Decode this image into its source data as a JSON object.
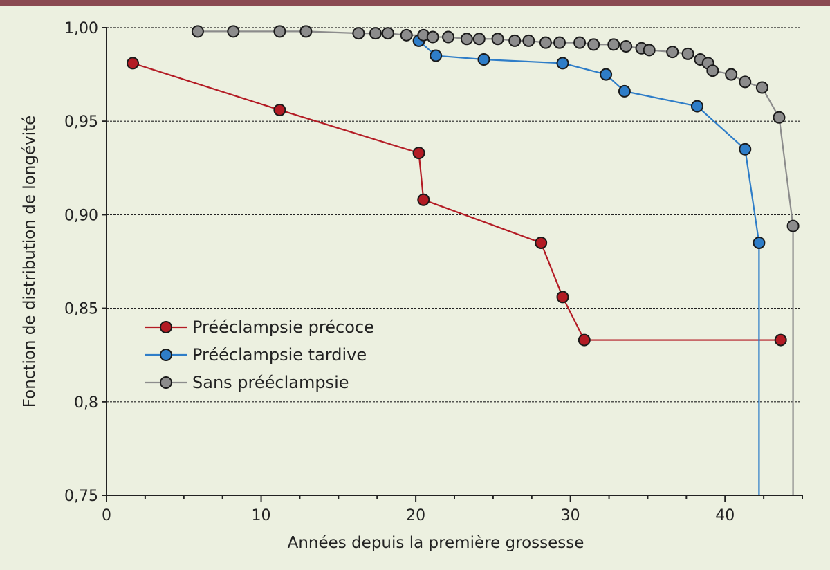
{
  "chart_data": {
    "type": "line",
    "title": "",
    "xlabel": "Années depuis la première grossesse",
    "ylabel": "Fonction de distribution de longévité",
    "xlim": [
      0,
      45
    ],
    "ylim": [
      0.75,
      1.0
    ],
    "x_ticks": [
      {
        "value": 0,
        "label": "0"
      },
      {
        "value": 10,
        "label": "10"
      },
      {
        "value": 20,
        "label": "20"
      },
      {
        "value": 30,
        "label": "30"
      },
      {
        "value": 40,
        "label": "40"
      }
    ],
    "y_ticks": [
      {
        "value": 0.75,
        "label": "0,75"
      },
      {
        "value": 0.8,
        "label": "0,8"
      },
      {
        "value": 0.85,
        "label": "0,85"
      },
      {
        "value": 0.9,
        "label": "0,90"
      },
      {
        "value": 0.95,
        "label": "0,95"
      },
      {
        "value": 1.0,
        "label": "1,00"
      }
    ],
    "grid": "horizontal-dashed",
    "legend_position": "bottom-left",
    "series": [
      {
        "name": "Prééclampsie précoce",
        "color": "#b31b24",
        "points": [
          [
            1.7,
            0.981
          ],
          [
            11.2,
            0.956
          ],
          [
            20.2,
            0.933
          ],
          [
            20.5,
            0.908
          ],
          [
            28.1,
            0.885
          ],
          [
            29.5,
            0.856
          ],
          [
            30.9,
            0.833
          ],
          [
            43.6,
            0.833
          ]
        ]
      },
      {
        "name": "Prééclampsie tardive",
        "color": "#2e7dc8",
        "points": [
          [
            20.2,
            0.993
          ],
          [
            21.3,
            0.985
          ],
          [
            24.4,
            0.983
          ],
          [
            29.5,
            0.981
          ],
          [
            32.3,
            0.975
          ],
          [
            33.5,
            0.966
          ],
          [
            38.2,
            0.958
          ],
          [
            41.3,
            0.935
          ],
          [
            42.2,
            0.885
          ]
        ],
        "line_end": [
          42.2,
          0.75
        ]
      },
      {
        "name": "Sans prééclampsie",
        "color": "#8c8c8c",
        "points": [
          [
            5.9,
            0.998
          ],
          [
            8.2,
            0.998
          ],
          [
            11.2,
            0.998
          ],
          [
            12.9,
            0.998
          ],
          [
            16.3,
            0.997
          ],
          [
            17.4,
            0.997
          ],
          [
            18.2,
            0.997
          ],
          [
            19.4,
            0.996
          ],
          [
            20.5,
            0.996
          ],
          [
            21.1,
            0.995
          ],
          [
            22.1,
            0.995
          ],
          [
            23.3,
            0.994
          ],
          [
            24.1,
            0.994
          ],
          [
            25.3,
            0.994
          ],
          [
            26.4,
            0.993
          ],
          [
            27.3,
            0.993
          ],
          [
            28.4,
            0.992
          ],
          [
            29.3,
            0.992
          ],
          [
            30.6,
            0.992
          ],
          [
            31.5,
            0.991
          ],
          [
            32.8,
            0.991
          ],
          [
            33.6,
            0.99
          ],
          [
            34.6,
            0.989
          ],
          [
            35.1,
            0.988
          ],
          [
            36.6,
            0.987
          ],
          [
            37.6,
            0.986
          ],
          [
            38.4,
            0.983
          ],
          [
            38.9,
            0.981
          ],
          [
            39.2,
            0.977
          ],
          [
            40.4,
            0.975
          ],
          [
            41.3,
            0.971
          ],
          [
            42.4,
            0.968
          ],
          [
            43.5,
            0.952
          ],
          [
            44.4,
            0.894
          ]
        ],
        "line_end": [
          44.4,
          0.75
        ]
      }
    ]
  }
}
